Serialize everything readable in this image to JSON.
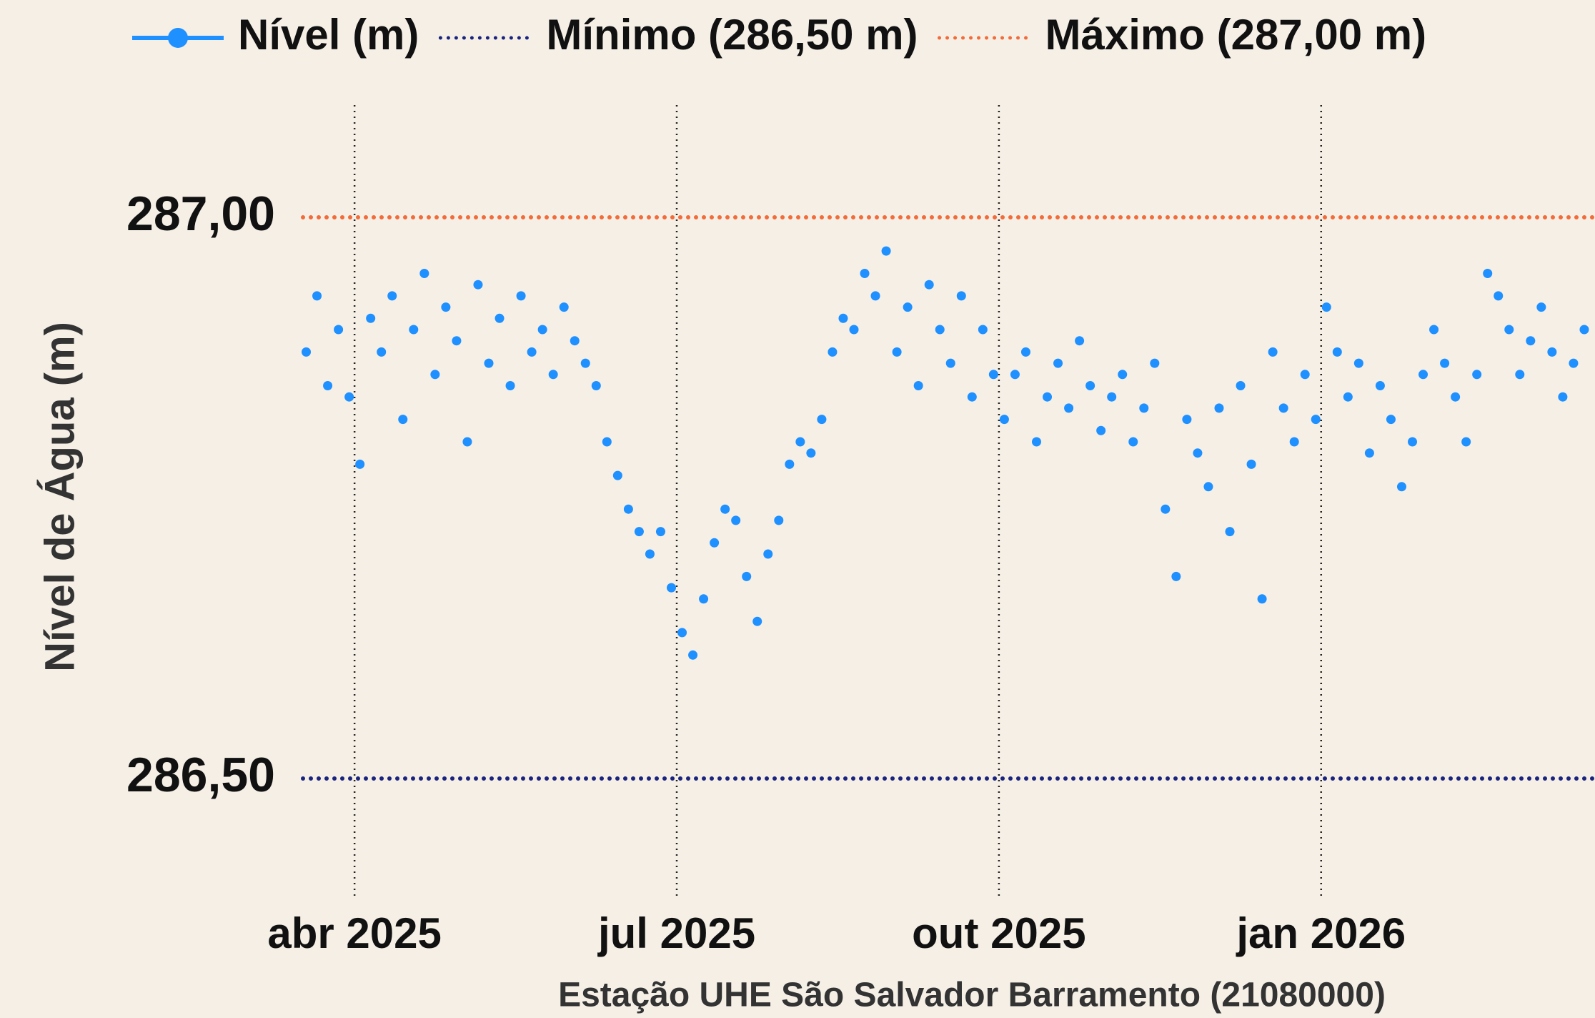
{
  "chart_data": {
    "type": "scatter",
    "x_label": "Estação UHE São Salvador Barramento (21080000)",
    "y_label": "Nível de Água (m)",
    "legend": "top",
    "grid": "x",
    "xlim": [
      -0.48,
      11.55
    ],
    "xticks": [
      {
        "value": 0,
        "label": "abr 2025"
      },
      {
        "value": 3,
        "label": "jul 2025"
      },
      {
        "value": 6,
        "label": "out 2025"
      },
      {
        "value": 9,
        "label": "jan 2026"
      }
    ],
    "ylim": [
      286.4,
      287.1
    ],
    "yticks": [
      {
        "value": 286.5,
        "label": "286,50"
      },
      {
        "value": 287,
        "label": "287,00"
      }
    ],
    "x": [
      -0.45,
      -0.35,
      -0.25,
      -0.15,
      -0.05,
      0.05,
      0.15,
      0.25,
      0.35,
      0.45,
      0.55,
      0.65,
      0.75,
      0.85,
      0.95,
      1.05,
      1.15,
      1.25,
      1.35,
      1.45,
      1.55,
      1.65,
      1.75,
      1.85,
      1.95,
      2.05,
      2.15,
      2.25,
      2.35,
      2.45,
      2.55,
      2.65,
      2.75,
      2.85,
      2.95,
      3.05,
      3.15,
      3.25,
      3.35,
      3.45,
      3.55,
      3.65,
      3.75,
      3.85,
      3.95,
      4.05,
      4.15,
      4.25,
      4.35,
      4.45,
      4.55,
      4.65,
      4.75,
      4.85,
      4.95,
      5.05,
      5.15,
      5.25,
      5.35,
      5.45,
      5.55,
      5.65,
      5.75,
      5.85,
      5.95,
      6.05,
      6.15,
      6.25,
      6.35,
      6.45,
      6.55,
      6.65,
      6.75,
      6.85,
      6.95,
      7.05,
      7.15,
      7.25,
      7.35,
      7.45,
      7.55,
      7.65,
      7.75,
      7.85,
      7.95,
      8.05,
      8.15,
      8.25,
      8.35,
      8.45,
      8.55,
      8.65,
      8.75,
      8.85,
      8.95,
      9.05,
      9.15,
      9.25,
      9.35,
      9.45,
      9.55,
      9.65,
      9.75,
      9.85,
      9.95,
      10.05,
      10.15,
      10.25,
      10.35,
      10.45,
      10.55,
      10.65,
      10.75,
      10.85,
      10.95,
      11.05,
      11.15,
      11.25,
      11.35,
      11.45
    ],
    "series": [
      {
        "name": "Nível (m)",
        "color": "#1e90ff",
        "values": [
          286.88,
          286.93,
          286.85,
          286.9,
          286.84,
          286.78,
          286.91,
          286.88,
          286.93,
          286.82,
          286.9,
          286.95,
          286.86,
          286.92,
          286.89,
          286.8,
          286.94,
          286.87,
          286.91,
          286.85,
          286.93,
          286.88,
          286.9,
          286.86,
          286.92,
          286.89,
          286.87,
          286.85,
          286.8,
          286.77,
          286.74,
          286.72,
          286.7,
          286.72,
          286.67,
          286.63,
          286.61,
          286.66,
          286.71,
          286.74,
          286.73,
          286.68,
          286.64,
          286.7,
          286.73,
          286.78,
          286.8,
          286.79,
          286.82,
          286.88,
          286.91,
          286.9,
          286.95,
          286.93,
          286.97,
          286.88,
          286.92,
          286.85,
          286.94,
          286.9,
          286.87,
          286.93,
          286.84,
          286.9,
          286.86,
          286.82,
          286.86,
          286.88,
          286.8,
          286.84,
          286.87,
          286.83,
          286.89,
          286.85,
          286.81,
          286.84,
          286.86,
          286.8,
          286.83,
          286.87,
          286.74,
          286.68,
          286.82,
          286.79,
          286.76,
          286.83,
          286.72,
          286.85,
          286.78,
          286.66,
          286.88,
          286.83,
          286.8,
          286.86,
          286.82,
          286.92,
          286.88,
          286.84,
          286.87,
          286.79,
          286.85,
          286.82,
          286.76,
          286.8,
          286.86,
          286.9,
          286.87,
          286.84,
          286.8,
          286.86,
          286.95,
          286.93,
          286.9,
          286.86,
          286.89,
          286.92,
          286.88,
          286.84,
          286.87,
          286.9
        ]
      }
    ],
    "reference_lines": [
      {
        "name": "Mínimo (286,50 m)",
        "value": 286.5,
        "color": "#1a237e"
      },
      {
        "name": "Máximo (287,00 m)",
        "value": 287,
        "color": "#f26b38"
      }
    ]
  }
}
